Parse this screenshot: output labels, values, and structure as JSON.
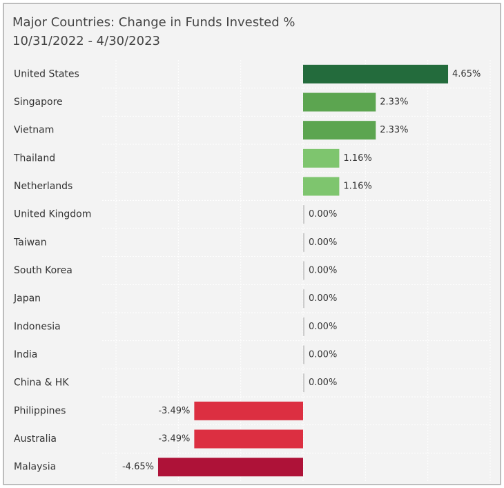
{
  "chart_data": {
    "type": "bar",
    "orientation": "horizontal",
    "title": "Major Countries:  Change in Funds Invested %",
    "subtitle": "10/31/2022 - 4/30/2023",
    "categories": [
      "United States",
      "Singapore",
      "Vietnam",
      "Thailand",
      "Netherlands",
      "United Kingdom",
      "Taiwan",
      "South Korea",
      "Japan",
      "Indonesia",
      "India",
      "China & HK",
      "Philippines",
      "Australia",
      "Malaysia"
    ],
    "values": [
      4.65,
      2.33,
      2.33,
      1.16,
      1.16,
      0,
      0,
      0,
      0,
      0,
      0,
      0,
      -3.49,
      -3.49,
      -4.65
    ],
    "value_labels": [
      "4.65%",
      "2.33%",
      "2.33%",
      "1.16%",
      "1.16%",
      "0.00%",
      "0.00%",
      "0.00%",
      "0.00%",
      "0.00%",
      "0.00%",
      "0.00%",
      "-3.49%",
      "-3.49%",
      "-4.65%"
    ],
    "colors": [
      "#236b3c",
      "#5ca550",
      "#5ca550",
      "#7ec56e",
      "#7ec56e",
      "#cccccc",
      "#cccccc",
      "#cccccc",
      "#cccccc",
      "#cccccc",
      "#cccccc",
      "#cccccc",
      "#dc2f41",
      "#dc2f41",
      "#ae1238"
    ],
    "xlim": [
      -6,
      6
    ],
    "xticks": [
      -6,
      -4,
      -2,
      0,
      2,
      4,
      6
    ],
    "grid": true
  }
}
